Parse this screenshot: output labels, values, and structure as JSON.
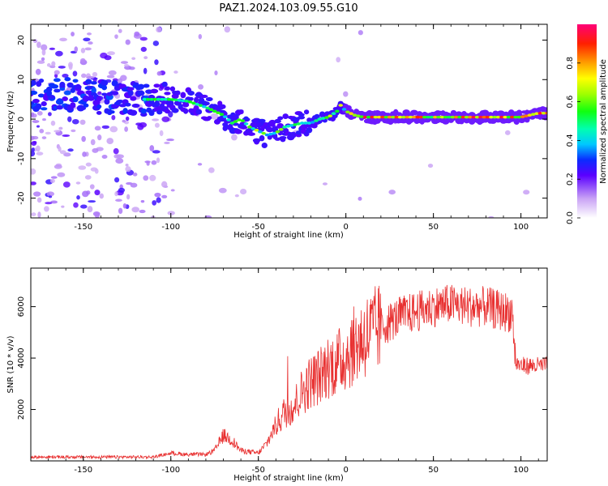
{
  "page_title": "PAZ1.2024.103.09.55.G10",
  "chart_data": [
    {
      "type": "heatmap",
      "xlabel": "Height of straight line (km)",
      "ylabel": "Frequency (Hz)",
      "xlim": [
        -180,
        115
      ],
      "ylim": [
        -25,
        24
      ],
      "xticks": [
        -150,
        -100,
        -50,
        0,
        50,
        100
      ],
      "yticks": [
        -20,
        -10,
        0,
        10,
        20
      ],
      "colorbar": {
        "label": "Normalized spectral amplitude",
        "range": [
          0,
          1
        ],
        "ticks": [
          0.0,
          0.2,
          0.4,
          0.6,
          0.8
        ]
      },
      "ridge": {
        "x": [
          -180,
          -160,
          -140,
          -120,
          -110,
          -100,
          -90,
          -80,
          -70,
          -65,
          -60,
          -55,
          -50,
          -45,
          -40,
          -35,
          -30,
          -25,
          -20,
          -15,
          -10,
          -5,
          -3,
          0,
          5,
          10,
          20,
          40,
          60,
          80,
          100,
          110,
          115
        ],
        "y": [
          6,
          6.5,
          5.5,
          5,
          5,
          5,
          4.5,
          3,
          1,
          -1,
          0,
          -2,
          -3,
          -4,
          -3.5,
          -2,
          -1.5,
          -1,
          -1,
          0,
          0.5,
          2,
          3.5,
          2,
          1,
          0.5,
          0.5,
          0.5,
          0.5,
          0.5,
          0.5,
          1.5,
          1.5
        ]
      }
    },
    {
      "type": "line",
      "xlabel": "Height of straight line (km)",
      "ylabel": "SNR (10 * v/v)",
      "xlim": [
        -180,
        115
      ],
      "ylim": [
        0,
        7500
      ],
      "xticks": [
        -150,
        -100,
        -50,
        0,
        50,
        100
      ],
      "yticks": [
        2000,
        4000,
        6000
      ],
      "color": "#e83030",
      "envelope": {
        "x": [
          -180,
          -110,
          -100,
          -90,
          -80,
          -75,
          -70,
          -65,
          -60,
          -55,
          -50,
          -45,
          -40,
          -35,
          -30,
          -25,
          -20,
          -15,
          -10,
          -5,
          0,
          5,
          10,
          20,
          30,
          40,
          50,
          60,
          70,
          80,
          90,
          95,
          97,
          100,
          110,
          115
        ],
        "y": [
          150,
          150,
          300,
          250,
          250,
          400,
          1000,
          800,
          400,
          350,
          300,
          700,
          1400,
          1900,
          2100,
          2700,
          3100,
          3300,
          3700,
          3800,
          4100,
          4500,
          4800,
          5200,
          5600,
          5800,
          6000,
          6100,
          6000,
          6000,
          5800,
          5800,
          3800,
          3700,
          3700,
          3700
        ]
      }
    }
  ],
  "colors": {
    "line": "#e83030",
    "axis": "#000000"
  }
}
